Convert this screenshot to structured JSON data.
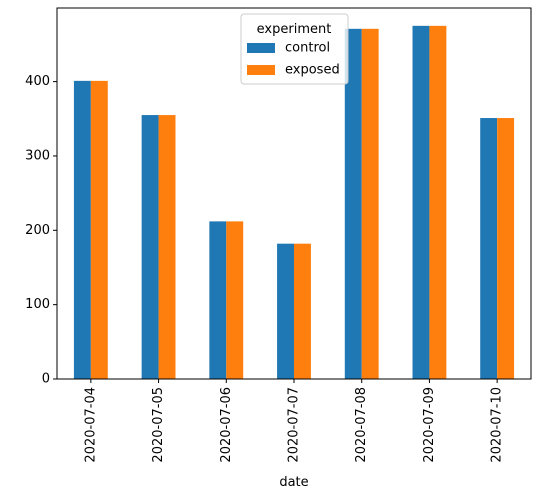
{
  "chart_data": {
    "type": "bar",
    "categories": [
      "2020-07-04",
      "2020-07-05",
      "2020-07-06",
      "2020-07-07",
      "2020-07-08",
      "2020-07-09",
      "2020-07-10"
    ],
    "series": [
      {
        "name": "control",
        "color": "#1f77b4",
        "values": [
          401,
          355,
          212,
          182,
          471,
          475,
          351
        ]
      },
      {
        "name": "exposed",
        "color": "#ff7f0e",
        "values": [
          401,
          355,
          212,
          182,
          471,
          475,
          351
        ]
      }
    ],
    "title": "",
    "xlabel": "date",
    "ylabel": "",
    "ylim": [
      0,
      499
    ],
    "yticks": [
      0,
      100,
      200,
      300,
      400
    ],
    "legend": {
      "title": "experiment",
      "placement": "top-center"
    },
    "grid": false
  }
}
